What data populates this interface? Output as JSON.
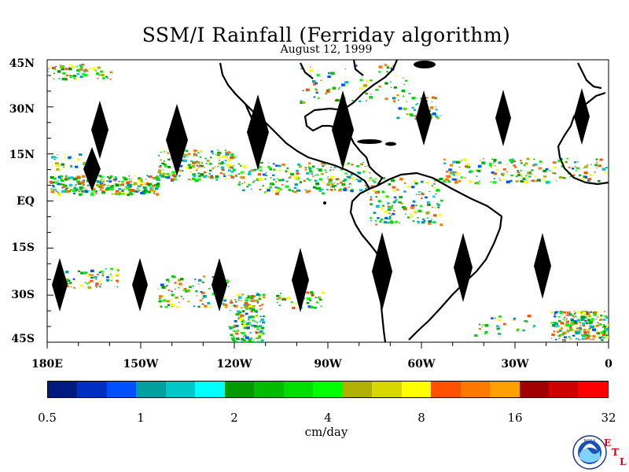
{
  "title": "SSM/I Rainfall (Ferriday algorithm)",
  "date": "August 12, 1999",
  "y_labels": [
    "45N",
    "30N",
    "15N",
    "EQ",
    "15S",
    "30S",
    "45S"
  ],
  "x_labels": [
    "180E",
    "150W",
    "120W",
    "90W",
    "60W",
    "30W",
    "0"
  ],
  "colorbar": {
    "colors": [
      "#001a80",
      "#0030c0",
      "#0050ff",
      "#00a0a0",
      "#00c8c8",
      "#00ffff",
      "#009900",
      "#00bb00",
      "#00dd00",
      "#00ff00",
      "#b0b000",
      "#d8d800",
      "#ffff00",
      "#ff5000",
      "#ff7800",
      "#ffa000",
      "#a00000",
      "#d00000",
      "#ff0000"
    ],
    "tick_labels": [
      "0.5",
      "1",
      "2",
      "4",
      "8",
      "16",
      "32"
    ],
    "units": "cm/day"
  },
  "logo": {
    "text": "NOAA",
    "etl_letters": [
      "E",
      "T",
      "L"
    ]
  }
}
